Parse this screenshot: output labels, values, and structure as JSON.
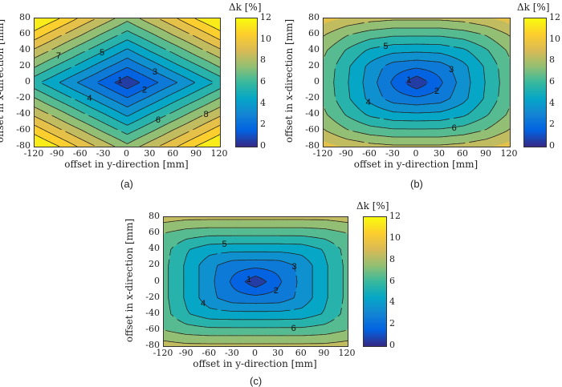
{
  "chart_data": [
    {
      "type": "contour",
      "caption": "(a)",
      "xlabel": "offset in y-direction [mm]",
      "ylabel": "offset in x-direction [mm]",
      "colorbar_label": "Δk [%]",
      "colormap": "parula",
      "clim": [
        0,
        12
      ],
      "colorbar_ticks": [
        "0",
        "2",
        "4",
        "6",
        "8",
        "10",
        "12"
      ],
      "xlim": [
        -120,
        120
      ],
      "ylim": [
        -80,
        80
      ],
      "xticks": [
        "-120",
        "-90",
        "-60",
        "-30",
        "0",
        "30",
        "60",
        "90",
        "120"
      ],
      "yticks": [
        "80",
        "60",
        "40",
        "20",
        "0",
        "-20",
        "-40",
        "-60",
        "-80"
      ],
      "contour_levels": [
        1,
        2,
        3,
        4,
        5,
        6,
        7,
        8,
        9,
        10,
        11
      ],
      "grid_y_mm": [
        -120,
        -90,
        -60,
        -30,
        0,
        30,
        60,
        90,
        120
      ],
      "grid_x_mm": [
        80,
        60,
        40,
        20,
        0,
        -20,
        -40,
        -60,
        -80
      ],
      "z": [
        [
          12.3,
          11.1,
          9.8,
          8.6,
          7.3,
          8.6,
          9.8,
          11.1,
          12.3
        ],
        [
          10.6,
          9.3,
          8.1,
          6.8,
          5.6,
          6.8,
          8.1,
          9.3,
          10.6
        ],
        [
          8.8,
          7.6,
          6.3,
          5.1,
          3.8,
          5.1,
          6.3,
          7.6,
          8.8
        ],
        [
          7.1,
          5.8,
          4.6,
          3.3,
          2.1,
          3.3,
          4.6,
          5.8,
          7.1
        ],
        [
          5.3,
          4.1,
          2.8,
          1.6,
          0.3,
          1.6,
          2.8,
          4.1,
          5.3
        ],
        [
          7.1,
          5.8,
          4.6,
          3.3,
          2.1,
          3.3,
          4.6,
          5.8,
          7.1
        ],
        [
          8.8,
          7.6,
          6.3,
          5.1,
          3.8,
          5.1,
          6.3,
          7.6,
          8.8
        ],
        [
          10.6,
          9.3,
          8.1,
          6.8,
          5.6,
          6.8,
          8.1,
          9.3,
          10.6
        ],
        [
          12.3,
          11.1,
          9.8,
          8.6,
          7.3,
          8.6,
          9.8,
          11.1,
          12.3
        ]
      ]
    },
    {
      "type": "contour",
      "caption": "(b)",
      "xlabel": "offset in y-direction [mm]",
      "ylabel": "offset in x-direction [mm]",
      "colorbar_label": "Δk [%]",
      "colormap": "parula",
      "clim": [
        0,
        12
      ],
      "colorbar_ticks": [
        "0",
        "2",
        "4",
        "6",
        "8",
        "10",
        "12"
      ],
      "xlim": [
        -120,
        120
      ],
      "ylim": [
        -80,
        80
      ],
      "xticks": [
        "-120",
        "-90",
        "-60",
        "-30",
        "0",
        "30",
        "60",
        "90",
        "120"
      ],
      "yticks": [
        "80",
        "60",
        "40",
        "20",
        "0",
        "-20",
        "-40",
        "-60",
        "-80"
      ],
      "contour_levels": [
        1,
        2,
        3,
        4,
        5,
        6,
        7,
        8
      ],
      "grid_y_mm": [
        -120,
        -90,
        -60,
        -30,
        0,
        30,
        60,
        90,
        120
      ],
      "grid_x_mm": [
        80,
        60,
        40,
        20,
        0,
        -20,
        -40,
        -60,
        -80
      ],
      "z": [
        [
          9.4,
          8.8,
          8.4,
          8.2,
          8.2,
          8.2,
          8.4,
          8.8,
          9.4
        ],
        [
          8.1,
          7.1,
          6.5,
          6.2,
          6.2,
          6.2,
          6.5,
          7.1,
          8.1
        ],
        [
          7.2,
          5.9,
          4.8,
          4.3,
          4.2,
          4.3,
          4.8,
          5.9,
          7.2
        ],
        [
          6.8,
          5.2,
          3.7,
          2.5,
          2.2,
          2.5,
          3.7,
          5.2,
          6.8
        ],
        [
          6.7,
          5.1,
          3.5,
          1.8,
          0.2,
          1.8,
          3.5,
          5.1,
          6.7
        ],
        [
          6.8,
          5.2,
          3.7,
          2.5,
          2.2,
          2.5,
          3.7,
          5.2,
          6.8
        ],
        [
          7.2,
          5.9,
          4.8,
          4.3,
          4.2,
          4.3,
          4.8,
          5.9,
          7.2
        ],
        [
          8.1,
          7.1,
          6.5,
          6.2,
          6.2,
          6.2,
          6.5,
          7.1,
          8.1
        ],
        [
          9.4,
          8.8,
          8.4,
          8.2,
          8.2,
          8.2,
          8.4,
          8.8,
          9.4
        ]
      ]
    },
    {
      "type": "contour",
      "caption": "(c)",
      "xlabel": "offset in y-direction [mm]",
      "ylabel": "offset in x-direction [mm]",
      "colorbar_label": "Δk [%]",
      "colormap": "parula",
      "clim": [
        0,
        12
      ],
      "colorbar_ticks": [
        "0",
        "2",
        "4",
        "6",
        "8",
        "10",
        "12"
      ],
      "xlim": [
        -120,
        120
      ],
      "ylim": [
        -80,
        80
      ],
      "xticks": [
        "-120",
        "-90",
        "-60",
        "-30",
        "0",
        "30",
        "60",
        "90",
        "120"
      ],
      "yticks": [
        "80",
        "60",
        "40",
        "20",
        "0",
        "-20",
        "-40",
        "-60",
        "-80"
      ],
      "contour_levels": [
        1,
        2,
        3,
        4,
        5,
        6,
        7,
        8
      ],
      "grid_y_mm": [
        -120,
        -90,
        -60,
        -30,
        0,
        30,
        60,
        90,
        120
      ],
      "grid_x_mm": [
        80,
        60,
        40,
        20,
        0,
        -20,
        -40,
        -60,
        -80
      ],
      "z": [
        [
          8.5,
          8.3,
          8.3,
          8.3,
          8.3,
          8.3,
          8.3,
          8.3,
          8.5
        ],
        [
          7.0,
          6.5,
          6.3,
          6.3,
          6.3,
          6.3,
          6.3,
          6.5,
          7.0
        ],
        [
          6.4,
          5.1,
          4.4,
          4.3,
          4.3,
          4.3,
          4.4,
          5.1,
          6.4
        ],
        [
          6.3,
          4.8,
          3.3,
          2.4,
          2.3,
          2.4,
          3.3,
          4.8,
          6.3
        ],
        [
          6.3,
          4.8,
          3.3,
          1.8,
          0.3,
          1.8,
          3.3,
          4.8,
          6.3
        ],
        [
          6.3,
          4.8,
          3.3,
          2.4,
          2.3,
          2.4,
          3.3,
          4.8,
          6.3
        ],
        [
          6.4,
          5.1,
          4.4,
          4.3,
          4.3,
          4.3,
          4.4,
          5.1,
          6.4
        ],
        [
          7.0,
          6.5,
          6.3,
          6.3,
          6.3,
          6.3,
          6.3,
          6.5,
          7.0
        ],
        [
          8.5,
          8.3,
          8.3,
          8.3,
          8.3,
          8.3,
          8.3,
          8.3,
          8.5
        ]
      ]
    }
  ]
}
